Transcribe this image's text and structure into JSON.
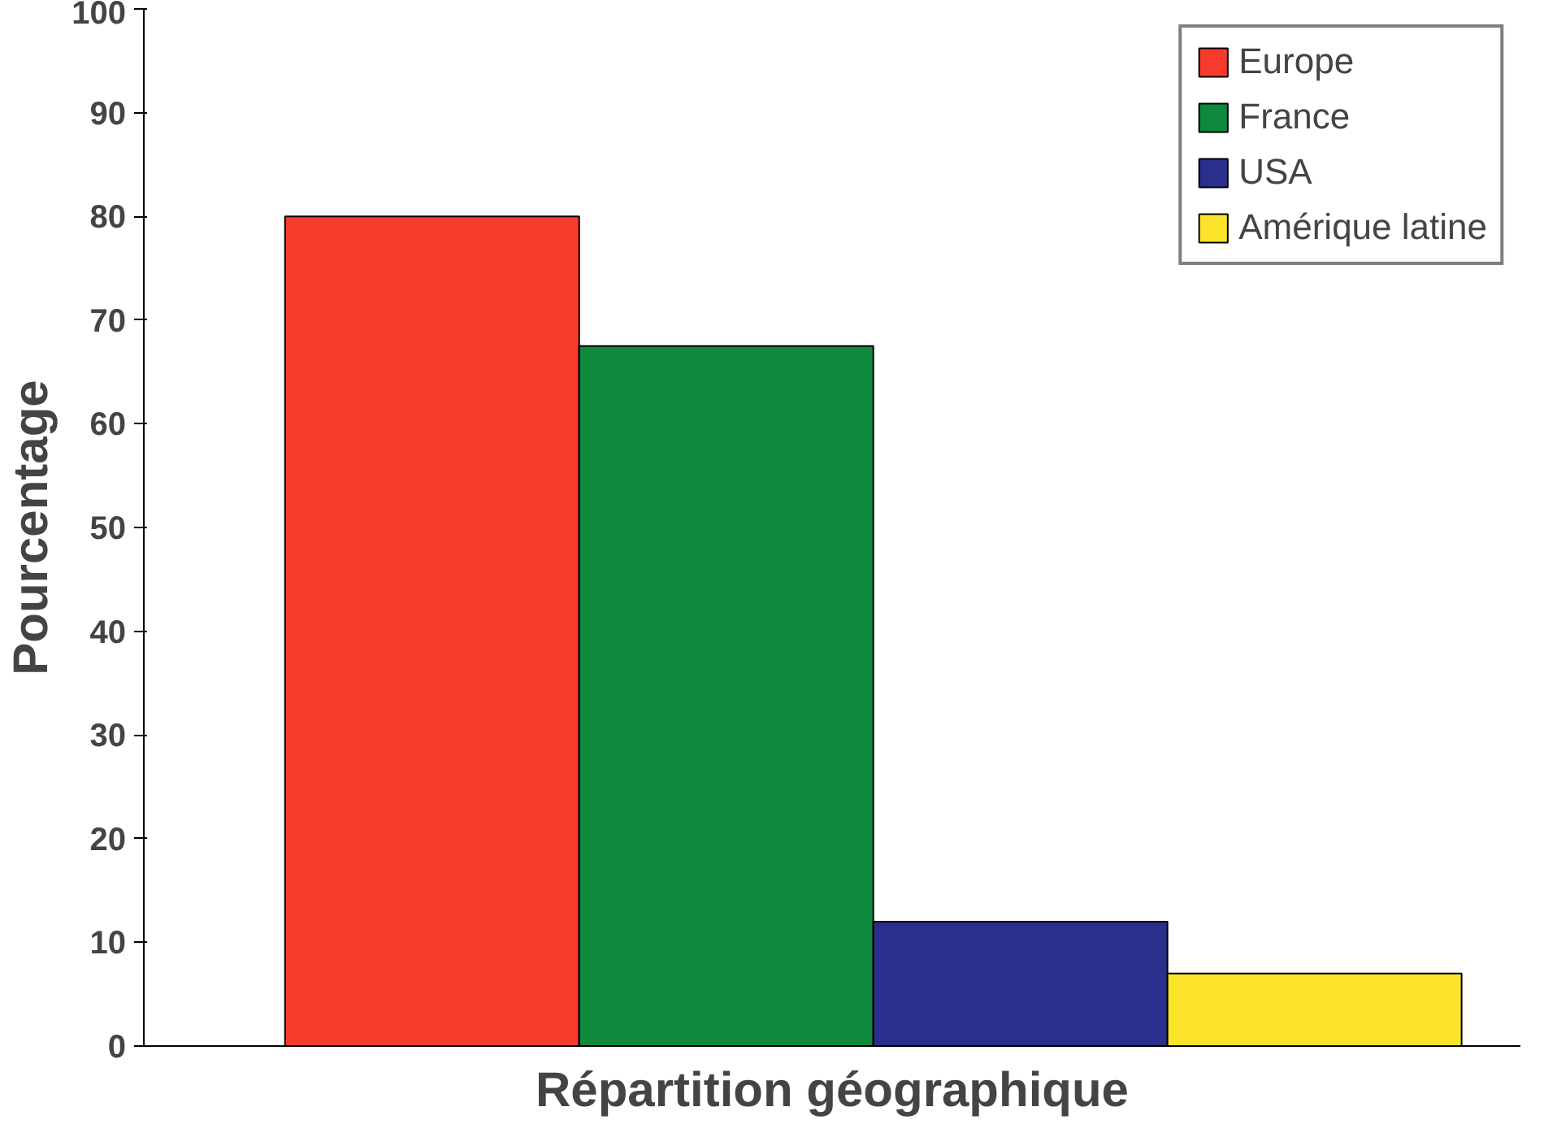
{
  "chart_data": {
    "type": "bar",
    "xlabel": "Répartition géographique",
    "ylabel": "Pourcentage",
    "categories": [
      null
    ],
    "series": [
      {
        "name": "Europe",
        "color": "#f83a2c",
        "values": [
          80
        ]
      },
      {
        "name": "France",
        "color": "#0f8a3c",
        "values": [
          67.5
        ]
      },
      {
        "name": "USA",
        "color": "#2a2f8c",
        "values": [
          12
        ]
      },
      {
        "name": "Amérique latine",
        "color": "#fbe32a",
        "values": [
          7
        ]
      }
    ],
    "ylim": [
      0,
      100
    ],
    "yticks": [
      0,
      10,
      20,
      30,
      40,
      50,
      60,
      70,
      80,
      90,
      100
    ],
    "grid": false,
    "legend": "top right",
    "tick_labels": "y"
  }
}
